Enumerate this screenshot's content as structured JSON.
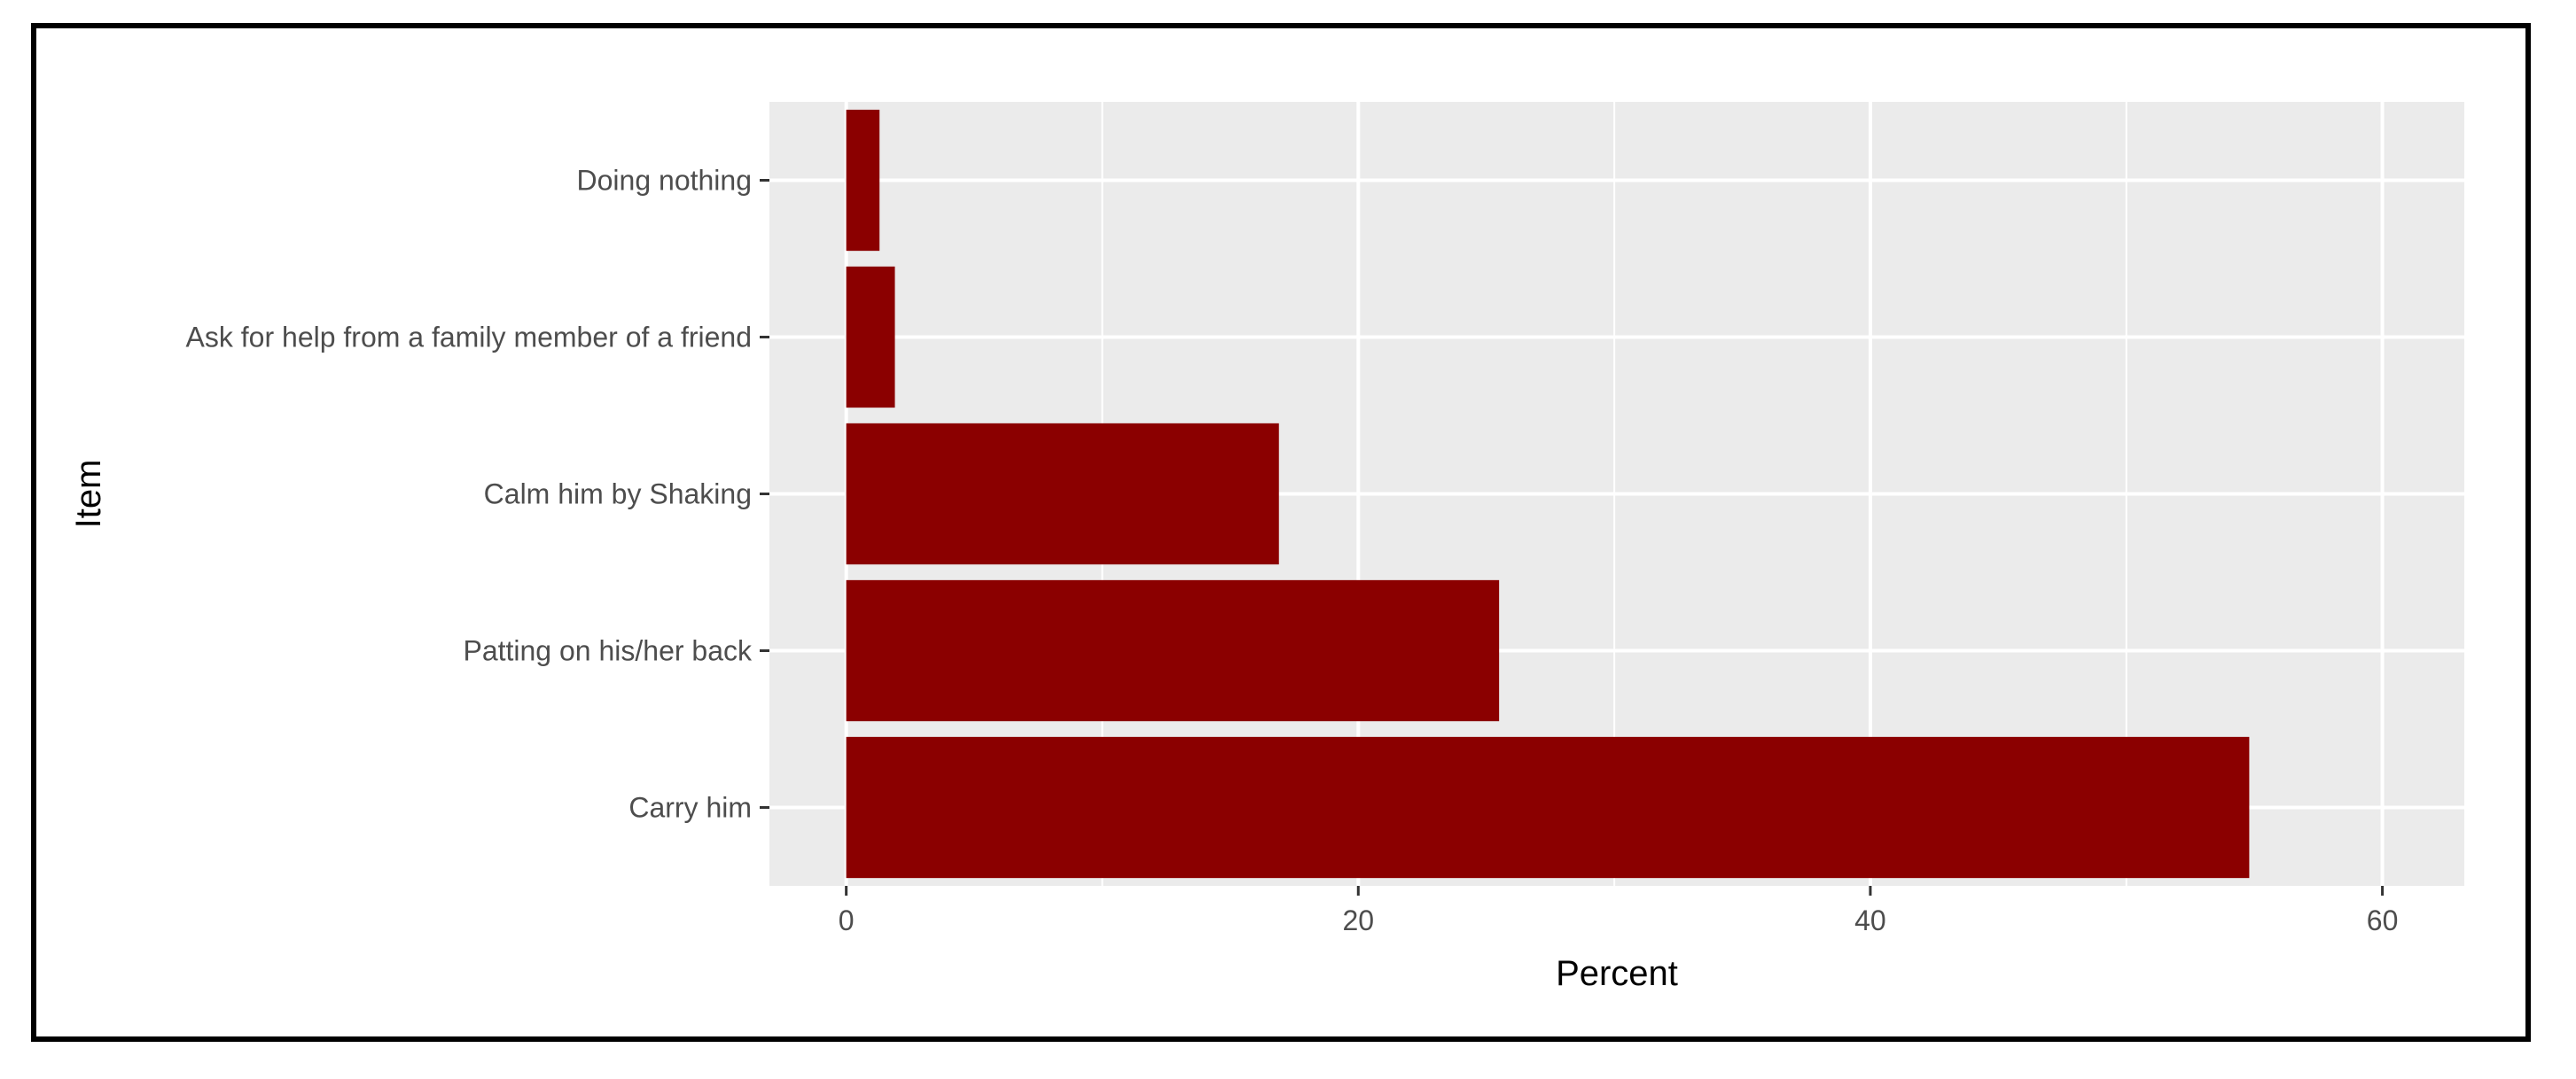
{
  "chart_data": {
    "type": "bar",
    "orientation": "horizontal",
    "categories": [
      "Doing nothing",
      "Ask for help from a family member of a friend",
      "Calm him by Shaking",
      "Patting on his/her back",
      "Carry him"
    ],
    "values": [
      1.3,
      1.9,
      16.9,
      25.5,
      54.8
    ],
    "xlabel": "Percent",
    "ylabel": "Item",
    "xlim": [
      -3,
      63.2
    ],
    "xticks": [
      0,
      20,
      40,
      60
    ],
    "grid": true,
    "legend": "none",
    "colors": {
      "bar": "#8b0000",
      "panel": "#ebebeb",
      "gridline": "#ffffff",
      "tick_text": "#4d4d4d",
      "tick_mark": "#333333"
    }
  }
}
